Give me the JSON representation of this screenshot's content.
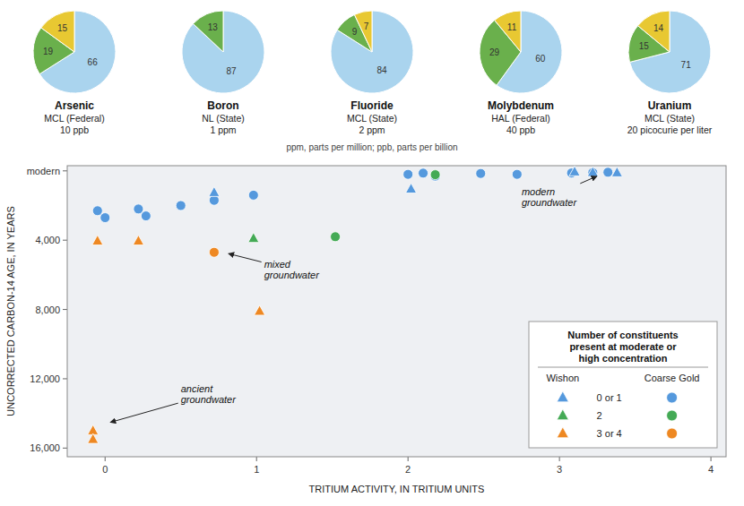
{
  "chart_data": [
    {
      "type": "pie",
      "title": "Arsenic",
      "subtitle": [
        "MCL (Federal)",
        "10 ppb"
      ],
      "values": [
        66,
        19,
        15
      ],
      "colors": [
        "#aad4ee",
        "#6ab04c",
        "#e8c832"
      ],
      "data_labels": true,
      "annotations": [
        "ppm, parts per million; ppb, parts per billion"
      ]
    },
    {
      "type": "pie",
      "title": "Boron",
      "subtitle": [
        "NL (State)",
        "1 ppm"
      ],
      "values": [
        87,
        13
      ],
      "colors": [
        "#aad4ee",
        "#6ab04c"
      ],
      "data_labels": true
    },
    {
      "type": "pie",
      "title": "Fluoride",
      "subtitle": [
        "MCL (State)",
        "2 ppm"
      ],
      "values": [
        84,
        9,
        7
      ],
      "colors": [
        "#aad4ee",
        "#6ab04c",
        "#e8c832"
      ],
      "data_labels": true
    },
    {
      "type": "pie",
      "title": "Molybdenum",
      "subtitle": [
        "HAL (Federal)",
        "40 ppb"
      ],
      "values": [
        60,
        29,
        11
      ],
      "colors": [
        "#aad4ee",
        "#6ab04c",
        "#e8c832"
      ],
      "data_labels": true
    },
    {
      "type": "pie",
      "title": "Uranium",
      "subtitle": [
        "MCL (State)",
        "20 picocurie per liter"
      ],
      "values": [
        71,
        15,
        14
      ],
      "colors": [
        "#aad4ee",
        "#6ab04c",
        "#e8c832"
      ],
      "data_labels": true
    },
    {
      "type": "scatter",
      "x_label": "TRITIUM ACTIVITY, IN TRITIUM UNITS",
      "y_label": "UNCORRECTED CARBON-14 AGE, IN YEARS",
      "xlim": [
        -0.25,
        4.1
      ],
      "ylim": [
        16500,
        -300
      ],
      "xticks": [
        0,
        1,
        2,
        3,
        4
      ],
      "yticks": [
        {
          "value": 0,
          "label": "modern"
        },
        {
          "value": 4000,
          "label": "4,000"
        },
        {
          "value": 8000,
          "label": "8,000"
        },
        {
          "value": 12000,
          "label": "12,000"
        },
        {
          "value": 16000,
          "label": "16,000"
        }
      ],
      "legend": "lower right",
      "legend_title": "Number of constituents\npresent at moderate or\nhigh concentration",
      "legend_columns": [
        {
          "marker": "triangle",
          "label": "Wishon"
        },
        {
          "marker": "circle",
          "label": "Coarse Gold"
        }
      ],
      "series": [
        {
          "name": "0 or 1",
          "marker": "circle",
          "color": "#5599dd",
          "x": [
            -0.05,
            0.0,
            0.22,
            0.27,
            0.5,
            0.72,
            0.98,
            2.0,
            2.1,
            2.18,
            2.48,
            2.72,
            3.08,
            3.22,
            3.32
          ],
          "values": [
            2300,
            2700,
            2200,
            2600,
            2000,
            1700,
            1400,
            200,
            130,
            300,
            150,
            200,
            120,
            100,
            80
          ]
        },
        {
          "name": "0 or 1",
          "marker": "triangle",
          "color": "#5599dd",
          "x": [
            0.72,
            2.02,
            3.1,
            3.22,
            3.38
          ],
          "values": [
            1250,
            1050,
            60,
            90,
            110
          ]
        },
        {
          "name": "2",
          "marker": "circle",
          "color": "#44aa55",
          "x": [
            1.52,
            2.18
          ],
          "values": [
            3800,
            220
          ]
        },
        {
          "name": "2",
          "marker": "triangle",
          "color": "#44aa55",
          "x": [
            0.98
          ],
          "values": [
            3900
          ]
        },
        {
          "name": "3 or 4",
          "marker": "circle",
          "color": "#ee8822",
          "x": [
            0.72
          ],
          "values": [
            4700
          ]
        },
        {
          "name": "3 or 4",
          "marker": "triangle",
          "color": "#ee8822",
          "x": [
            -0.05,
            0.22,
            1.02,
            -0.08,
            -0.08
          ],
          "values": [
            4050,
            4050,
            8100,
            15000,
            15500
          ]
        }
      ],
      "annotations": [
        {
          "text": "modern\ngroundwater",
          "x": 3.28,
          "y": 180,
          "text_x": 2.75,
          "text_y": 1400
        },
        {
          "text": "mixed\ngroundwater",
          "x": 0.78,
          "y": 4700,
          "text_x": 1.05,
          "text_y": 5600
        },
        {
          "text": "ancient\ngroundwater",
          "x": 0.0,
          "y": 14600,
          "text_x": 0.5,
          "text_y": 12800
        }
      ]
    }
  ]
}
